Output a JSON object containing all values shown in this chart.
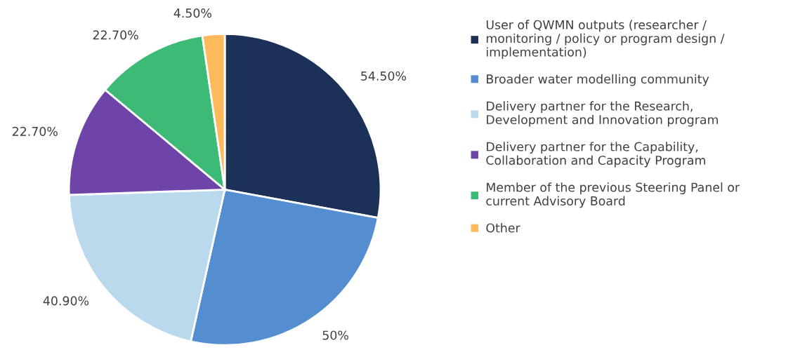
{
  "chart_data": {
    "type": "pie",
    "categories": [
      "User of QWMN outputs (researcher /\nmonitoring / policy or program design /\nimplementation)",
      "Broader water modelling community",
      "Delivery partner for the Research,\nDevelopment and Innovation program",
      "Delivery partner for the Capability,\nCollaboration and Capacity Program",
      "Member of the previous Steering Panel or\ncurrent Advisory Board",
      "Other"
    ],
    "values": [
      54.5,
      50,
      40.9,
      22.7,
      22.7,
      4.5
    ],
    "value_labels": [
      "54.50%",
      "50%",
      "40.90%",
      "22.70%",
      "22.70%",
      "4.50%"
    ],
    "colors": [
      "#1b3157",
      "#558ed0",
      "#bad9ec",
      "#6f44a8",
      "#3dba76",
      "#fdb95a"
    ],
    "legend": "right"
  }
}
